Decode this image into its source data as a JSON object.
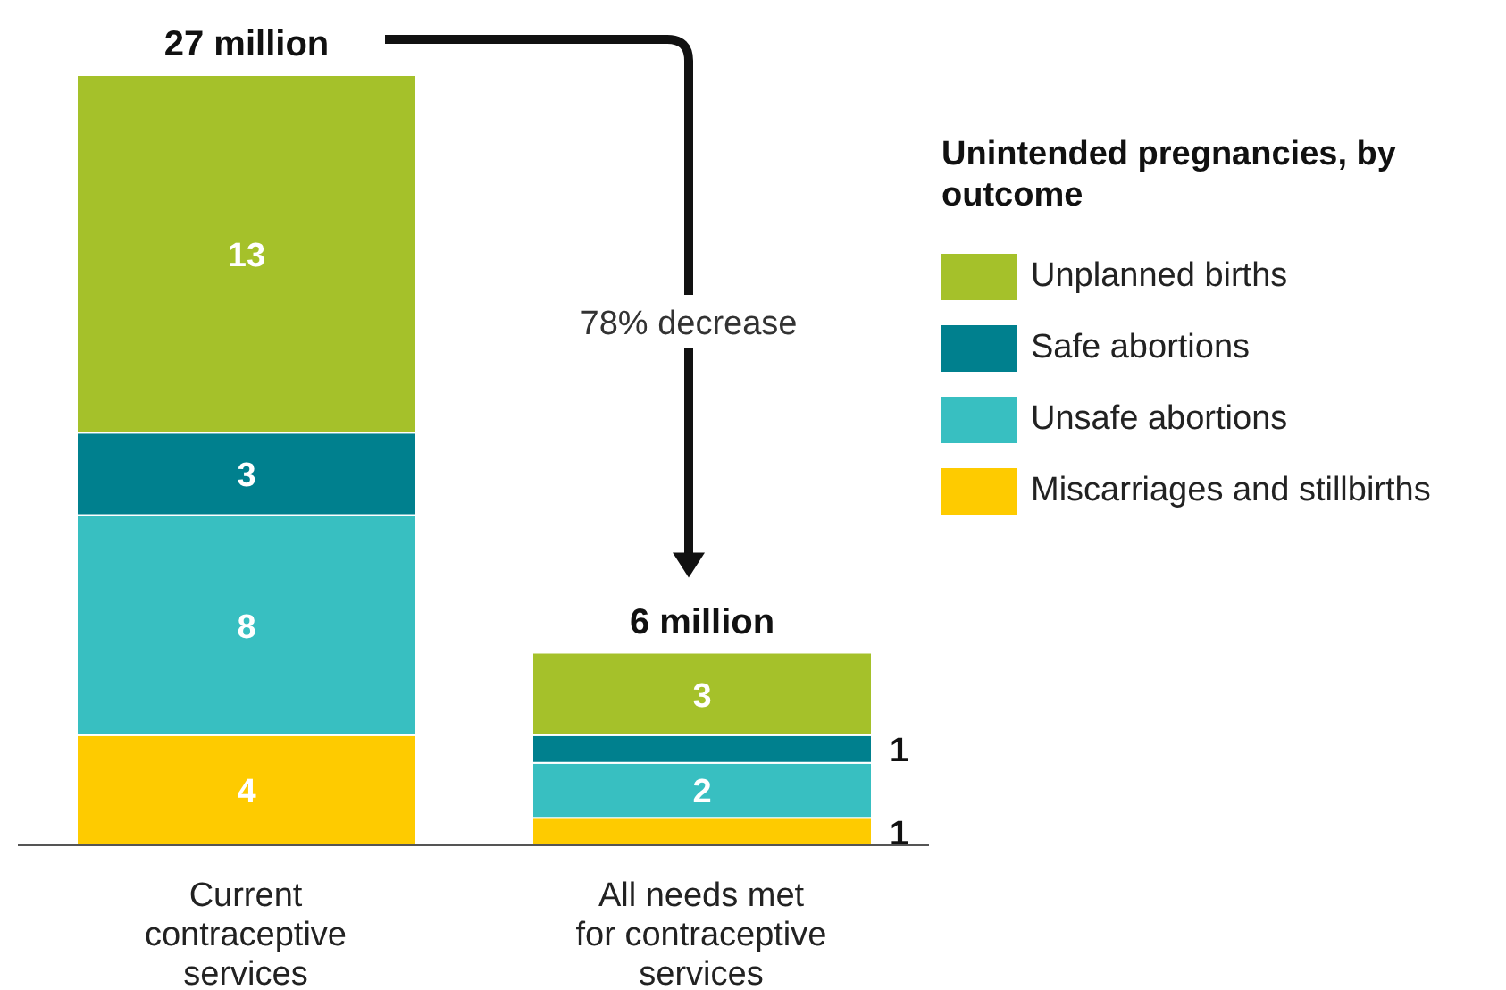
{
  "chart_data": {
    "type": "bar",
    "stacked": true,
    "categories": [
      "Current contraceptive services",
      "All needs met for contraceptive services"
    ],
    "series": [
      {
        "name": "Miscarriages and stillbirths",
        "color": "#fecb00",
        "values": [
          4,
          1
        ]
      },
      {
        "name": "Unsafe abortions",
        "color": "#38bfc1",
        "values": [
          8,
          2
        ]
      },
      {
        "name": "Safe abortions",
        "color": "#00808e",
        "values": [
          3,
          1
        ]
      },
      {
        "name": "Unplanned births",
        "color": "#a5c12a",
        "values": [
          13,
          3
        ]
      }
    ],
    "data_labels": true,
    "totals": [
      "27 million",
      "6 million"
    ],
    "annotations": [
      "78% decrease"
    ],
    "legend": "top right",
    "legend_title": "Unintended pregnancies, by outcome"
  }
}
